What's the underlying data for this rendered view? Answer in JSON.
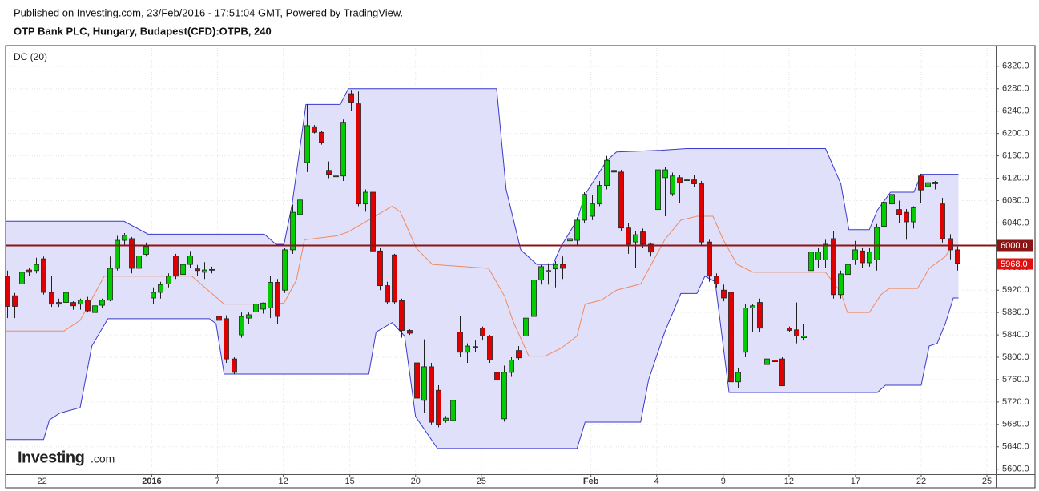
{
  "header": {
    "published": "Published on Investing.com, 23/Feb/2016 - 17:51:04 GMT, Powered by TradingView.",
    "title": "OTP Bank PLC, Hungary, Budapest(CFD):OTPB, 240"
  },
  "logo": {
    "brand": "Investing",
    "suffix": ".com"
  },
  "chart_data": {
    "type": "candlestick",
    "indicator_label": "DC (20)",
    "up_color": "#00cc00",
    "down_color": "#e00000",
    "fill": "#e0e0fa",
    "grid": true,
    "ylim": [
      5591,
      6357
    ],
    "xlim": [
      -0.2,
      135.3
    ],
    "yticks": [
      {
        "value": 5600,
        "label": "5600.0"
      },
      {
        "value": 5640,
        "label": "5640.0"
      },
      {
        "value": 5680,
        "label": "5680.0"
      },
      {
        "value": 5720,
        "label": "5720.0"
      },
      {
        "value": 5760,
        "label": "5760.0"
      },
      {
        "value": 5800,
        "label": "5800.0"
      },
      {
        "value": 5840,
        "label": "5840.0"
      },
      {
        "value": 5880,
        "label": "5880.0"
      },
      {
        "value": 5920,
        "label": "5920.0"
      },
      {
        "value": 5960,
        "label": "5960.0"
      },
      {
        "value": 6000,
        "label": "6000.0"
      },
      {
        "value": 6040,
        "label": "6040.0"
      },
      {
        "value": 6080,
        "label": "6080.0"
      },
      {
        "value": 6120,
        "label": "6120.0"
      },
      {
        "value": 6160,
        "label": "6160.0"
      },
      {
        "value": 6200,
        "label": "6200.0"
      },
      {
        "value": 6240,
        "label": "6240.0"
      },
      {
        "value": 6280,
        "label": "6280.0"
      },
      {
        "value": 6320,
        "label": "6320.0"
      }
    ],
    "xticks": [
      {
        "value": 4.8,
        "label": "22"
      },
      {
        "value": 19.8,
        "label": "2016"
      },
      {
        "value": 28.8,
        "label": "7"
      },
      {
        "value": 37.8,
        "label": "12"
      },
      {
        "value": 46.9,
        "label": "15"
      },
      {
        "value": 55.9,
        "label": "20"
      },
      {
        "value": 64.9,
        "label": "25"
      },
      {
        "value": 79.9,
        "label": "Feb"
      },
      {
        "value": 88.9,
        "label": "4"
      },
      {
        "value": 98.0,
        "label": "9"
      },
      {
        "value": 107.0,
        "label": "12"
      },
      {
        "value": 116.1,
        "label": "17"
      },
      {
        "value": 125.1,
        "label": "22"
      },
      {
        "value": 134.1,
        "label": "25"
      }
    ],
    "price_lines": [
      {
        "value": 6000,
        "label": "6000.0",
        "color": "#8b1414"
      },
      {
        "value": 5968,
        "label": "5968.0",
        "color": "#e01010"
      }
    ],
    "series": [
      {
        "color": "#3a3acc",
        "x": [
          -0.2,
          16.0,
          19.3,
          35.2,
          36.8,
          37.9,
          39.0,
          40.9,
          45.6,
          46.7,
          67.0,
          68.3,
          70.3,
          72.5,
          74.7,
          75.8,
          78.0,
          79.1,
          82.1,
          83.4,
          89.5,
          93.0,
          112.0,
          114.1,
          115.2,
          118.0,
          119.1,
          120.9,
          124.1,
          125.1,
          130.2
        ],
        "values": [
          6043,
          6043,
          6020,
          6020,
          6002,
          6002,
          6073,
          6252,
          6252,
          6280,
          6280,
          6100,
          5992,
          5966,
          5966,
          5998,
          6045,
          6091,
          6152,
          6167,
          6170,
          6173,
          6173,
          6110,
          6028,
          6028,
          6063,
          6095,
          6095,
          6127,
          6127
        ]
      },
      {
        "color": "#f08a5d",
        "x": [
          -0.2,
          7.8,
          10.0,
          13.3,
          25.3,
          29.7,
          36.3,
          37.9,
          39.6,
          40.7,
          45.1,
          46.7,
          50.5,
          52.7,
          53.8,
          56.0,
          58.2,
          65.9,
          68.1,
          69.2,
          71.4,
          73.6,
          75.8,
          78.0,
          79.1,
          81.3,
          83.4,
          86.7,
          90.0,
          92.2,
          94.4,
          96.6,
          98.0,
          99.9,
          102.1,
          112.0,
          114.1,
          115.0,
          118.0,
          119.6,
          120.7,
          124.6,
          126.2,
          128.4,
          129.5
        ],
        "values": [
          5847,
          5847,
          5866,
          5945,
          5945,
          5895,
          5895,
          5897,
          5938,
          6010,
          6017,
          6024,
          6053,
          6070,
          6060,
          5995,
          5966,
          5959,
          5909,
          5866,
          5802,
          5802,
          5816,
          5838,
          5895,
          5902,
          5920,
          5931,
          6010,
          6045,
          6052,
          6052,
          6010,
          5966,
          5952,
          5952,
          5916,
          5880,
          5880,
          5912,
          5923,
          5923,
          5959,
          5980,
          6002
        ]
      },
      {
        "color": "#3a3acc",
        "x": [
          -0.2,
          5.0,
          5.8,
          7.2,
          10.0,
          11.6,
          13.8,
          27.7,
          28.6,
          29.7,
          49.5,
          50.5,
          52.7,
          54.4,
          55.9,
          58.9,
          78.0,
          79.1,
          86.7,
          87.8,
          90.0,
          92.2,
          94.4,
          95.5,
          96.9,
          98.8,
          119.1,
          120.2,
          125.1,
          126.2,
          127.3,
          128.4,
          129.5,
          130.2
        ],
        "values": [
          5653,
          5653,
          5688,
          5700,
          5710,
          5820,
          5869,
          5869,
          5860,
          5770,
          5770,
          5845,
          5862,
          5838,
          5694,
          5637,
          5637,
          5684,
          5684,
          5760,
          5845,
          5914,
          5914,
          5945,
          5935,
          5737,
          5737,
          5750,
          5750,
          5820,
          5825,
          5860,
          5906,
          5906
        ]
      }
    ],
    "ohlc": [
      [
        5945,
        5955,
        5870,
        5891
      ],
      [
        5910,
        5915,
        5870,
        5891
      ],
      [
        5931,
        5966,
        5925,
        5952
      ],
      [
        5956,
        5960,
        5945,
        5952
      ],
      [
        5955,
        5978,
        5950,
        5966
      ],
      [
        5976,
        5980,
        5912,
        5916
      ],
      [
        5916,
        5945,
        5890,
        5895
      ],
      [
        5898,
        5905,
        5890,
        5895
      ],
      [
        5898,
        5925,
        5890,
        5916
      ],
      [
        5898,
        5900,
        5885,
        5892
      ],
      [
        5895,
        5905,
        5885,
        5902
      ],
      [
        5902,
        5908,
        5880,
        5883
      ],
      [
        5880,
        5898,
        5875,
        5892
      ],
      [
        5893,
        5905,
        5888,
        5902
      ],
      [
        5902,
        5980,
        5900,
        5959
      ],
      [
        5959,
        6017,
        5955,
        6009
      ],
      [
        6009,
        6022,
        6000,
        6018
      ],
      [
        6012,
        6015,
        5950,
        5959
      ],
      [
        5959,
        5990,
        5950,
        5981
      ],
      [
        5984,
        6005,
        5980,
        5998
      ],
      [
        5906,
        5925,
        5895,
        5916
      ],
      [
        5916,
        5935,
        5905,
        5930
      ],
      [
        5931,
        5950,
        5925,
        5945
      ],
      [
        5981,
        5985,
        5940,
        5945
      ],
      [
        5948,
        5970,
        5940,
        5966
      ],
      [
        5966,
        5990,
        5960,
        5981
      ],
      [
        5958,
        5965,
        5945,
        5955
      ],
      [
        5952,
        5970,
        5940,
        5956
      ],
      [
        5957,
        5962,
        5950,
        5957
      ],
      [
        5873,
        5900,
        5860,
        5866
      ],
      [
        5869,
        5875,
        5790,
        5797
      ],
      [
        5797,
        5800,
        5770,
        5773
      ],
      [
        5840,
        5880,
        5835,
        5873
      ],
      [
        5870,
        5880,
        5860,
        5876
      ],
      [
        5881,
        5900,
        5875,
        5895
      ],
      [
        5886,
        5898,
        5878,
        5897
      ],
      [
        5888,
        5945,
        5870,
        5934
      ],
      [
        5934,
        5940,
        5860,
        5873
      ],
      [
        5920,
        5995,
        5915,
        5992
      ],
      [
        5992,
        6073,
        5985,
        6059
      ],
      [
        6055,
        6085,
        6045,
        6081
      ],
      [
        6148,
        6252,
        6131,
        6214
      ],
      [
        6212,
        6215,
        6200,
        6202
      ],
      [
        6202,
        6205,
        6180,
        6184
      ],
      [
        6134,
        6150,
        6120,
        6127
      ],
      [
        6124,
        6130,
        6118,
        6124
      ],
      [
        6124,
        6225,
        6115,
        6220
      ],
      [
        6271,
        6278,
        6240,
        6256
      ],
      [
        6253,
        6275,
        6070,
        6074
      ],
      [
        6074,
        6100,
        6060,
        6095
      ],
      [
        6095,
        6100,
        5985,
        5990
      ],
      [
        5990,
        5995,
        5920,
        5928
      ],
      [
        5928,
        5935,
        5895,
        5899
      ],
      [
        5983,
        5985,
        5895,
        5899
      ],
      [
        5901,
        5905,
        5835,
        5848
      ],
      [
        5848,
        5850,
        5840,
        5843
      ],
      [
        5790,
        5830,
        5700,
        5727
      ],
      [
        5723,
        5832,
        5700,
        5783
      ],
      [
        5783,
        5790,
        5680,
        5684
      ],
      [
        5741,
        5750,
        5675,
        5680
      ],
      [
        5687,
        5695,
        5683,
        5691
      ],
      [
        5687,
        5740,
        5685,
        5723
      ],
      [
        5845,
        5873,
        5800,
        5809
      ],
      [
        5809,
        5825,
        5790,
        5820
      ],
      [
        5819,
        5830,
        5810,
        5817
      ],
      [
        5852,
        5855,
        5830,
        5838
      ],
      [
        5838,
        5840,
        5790,
        5795
      ],
      [
        5773,
        5780,
        5750,
        5759
      ],
      [
        5690,
        5785,
        5685,
        5773
      ],
      [
        5773,
        5800,
        5765,
        5795
      ],
      [
        5812,
        5820,
        5795,
        5799
      ],
      [
        5838,
        5875,
        5830,
        5870
      ],
      [
        5873,
        5940,
        5855,
        5938
      ],
      [
        5938,
        5965,
        5930,
        5962
      ],
      [
        5953,
        5968,
        5930,
        5955
      ],
      [
        5958,
        5972,
        5925,
        5966
      ],
      [
        5966,
        5980,
        5940,
        5959
      ],
      [
        6008,
        6020,
        5995,
        6012
      ],
      [
        6009,
        6050,
        6000,
        6045
      ],
      [
        6045,
        6095,
        6040,
        6091
      ],
      [
        6052,
        6090,
        6045,
        6074
      ],
      [
        6074,
        6115,
        6070,
        6107
      ],
      [
        6107,
        6160,
        6100,
        6152
      ],
      [
        6134,
        6155,
        6120,
        6131
      ],
      [
        6131,
        6135,
        6025,
        6031
      ],
      [
        6031,
        6040,
        5985,
        6002
      ],
      [
        6006,
        6025,
        5960,
        6019
      ],
      [
        6024,
        6030,
        5995,
        6002
      ],
      [
        6002,
        6005,
        5980,
        5988
      ],
      [
        6064,
        6140,
        6060,
        6135
      ],
      [
        6121,
        6140,
        6052,
        6135
      ],
      [
        6092,
        6130,
        6088,
        6124
      ],
      [
        6121,
        6125,
        6075,
        6112
      ],
      [
        6117,
        6150,
        6100,
        6117
      ],
      [
        6117,
        6125,
        6105,
        6110
      ],
      [
        6110,
        6115,
        6000,
        6006
      ],
      [
        6006,
        6010,
        5935,
        5945
      ],
      [
        5945,
        5950,
        5925,
        5931
      ],
      [
        5920,
        5930,
        5900,
        5906
      ],
      [
        5916,
        5920,
        5750,
        5756
      ],
      [
        5756,
        5780,
        5745,
        5773
      ],
      [
        5809,
        5895,
        5800,
        5888
      ],
      [
        5888,
        5895,
        5845,
        5892
      ],
      [
        5898,
        5905,
        5845,
        5852
      ],
      [
        5787,
        5810,
        5765,
        5797
      ],
      [
        5795,
        5820,
        5770,
        5792
      ],
      [
        5797,
        5800,
        5749,
        5749
      ],
      [
        5852,
        5855,
        5845,
        5848
      ],
      [
        5849,
        5898,
        5825,
        5838
      ],
      [
        5835,
        5860,
        5830,
        5838
      ],
      [
        5955,
        6010,
        5935,
        5988
      ],
      [
        5974,
        5995,
        5960,
        5988
      ],
      [
        5974,
        6010,
        5960,
        6002
      ],
      [
        6012,
        6025,
        5905,
        5912
      ],
      [
        5912,
        5955,
        5905,
        5949
      ],
      [
        5948,
        5975,
        5940,
        5966
      ],
      [
        5974,
        6008,
        5965,
        5992
      ],
      [
        5990,
        5995,
        5960,
        5969
      ],
      [
        5969,
        5995,
        5962,
        5988
      ],
      [
        5974,
        6038,
        5955,
        6032
      ],
      [
        6034,
        6085,
        6025,
        6077
      ],
      [
        6074,
        6098,
        6065,
        6091
      ],
      [
        6064,
        6080,
        6040,
        6055
      ],
      [
        6059,
        6065,
        6010,
        6042
      ],
      [
        6042,
        6070,
        6030,
        6067
      ],
      [
        6124,
        6128,
        6075,
        6099
      ],
      [
        6105,
        6118,
        6070,
        6112
      ],
      [
        6110,
        6115,
        6100,
        6113
      ],
      [
        6074,
        6085,
        6005,
        6012
      ],
      [
        6012,
        6020,
        5975,
        5992
      ],
      [
        5992,
        5998,
        5955,
        5968
      ]
    ]
  }
}
